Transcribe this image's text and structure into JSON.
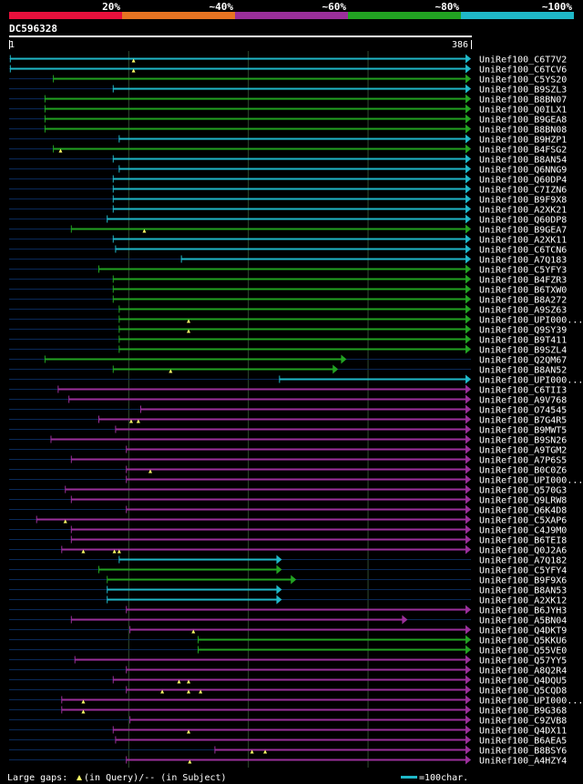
{
  "colors": {
    "bg": "#000000",
    "query_line": "#0a2a5a",
    "gap": "#ffff66",
    "grid": "#2f4a2f"
  },
  "legend": {
    "bins": [
      {
        "label": "20%",
        "color": "#e8103c"
      },
      {
        "label": "~40%",
        "color": "#e87422"
      },
      {
        "label": "~60%",
        "color": "#9b2f9b"
      },
      {
        "label": "~80%",
        "color": "#22a322"
      },
      {
        "label": "~100%",
        "color": "#1fb8c8"
      }
    ]
  },
  "query": {
    "id": "DC596328",
    "start": "1",
    "end": "386"
  },
  "footer": {
    "gaps_text": "Large gaps:",
    "gaps_query": "(in Query)/-- (in Subject)",
    "scale_text": "=100char."
  },
  "chart_data": {
    "type": "alignment",
    "title": "DC596328",
    "query_length": 386,
    "grid_positions": [
      100,
      200,
      300
    ],
    "hits": [
      {
        "id": "UniRef100_C6T7V2",
        "start": 1,
        "end": 386,
        "color": "cyan",
        "gaps": [
          104
        ]
      },
      {
        "id": "UniRef100_C6TCV6",
        "start": 1,
        "end": 386,
        "color": "cyan",
        "gaps": [
          104
        ]
      },
      {
        "id": "UniRef100_C5YS20",
        "start": 37,
        "end": 386,
        "color": "green",
        "gaps": []
      },
      {
        "id": "UniRef100_B9SZL3",
        "start": 87,
        "end": 386,
        "color": "cyan",
        "gaps": []
      },
      {
        "id": "UniRef100_B8BN07",
        "start": 30,
        "end": 386,
        "color": "green",
        "gaps": []
      },
      {
        "id": "UniRef100_Q0ILX1",
        "start": 30,
        "end": 386,
        "color": "green",
        "gaps": []
      },
      {
        "id": "UniRef100_B9GEA8",
        "start": 30,
        "end": 386,
        "color": "green",
        "gaps": []
      },
      {
        "id": "UniRef100_B8BN08",
        "start": 30,
        "end": 386,
        "color": "green",
        "gaps": []
      },
      {
        "id": "UniRef100_B9HZP1",
        "start": 92,
        "end": 386,
        "color": "cyan",
        "gaps": []
      },
      {
        "id": "UniRef100_B4FSG2",
        "start": 37,
        "end": 386,
        "color": "green",
        "gaps": [
          43
        ]
      },
      {
        "id": "UniRef100_B8AN54",
        "start": 87,
        "end": 386,
        "color": "cyan",
        "gaps": []
      },
      {
        "id": "UniRef100_Q6NNG9",
        "start": 92,
        "end": 386,
        "color": "cyan",
        "gaps": []
      },
      {
        "id": "UniRef100_Q60DP4",
        "start": 87,
        "end": 386,
        "color": "cyan",
        "gaps": []
      },
      {
        "id": "UniRef100_C7IZN6",
        "start": 87,
        "end": 386,
        "color": "cyan",
        "gaps": []
      },
      {
        "id": "UniRef100_B9F9X8",
        "start": 87,
        "end": 386,
        "color": "cyan",
        "gaps": []
      },
      {
        "id": "UniRef100_A2XK21",
        "start": 87,
        "end": 386,
        "color": "cyan",
        "gaps": []
      },
      {
        "id": "UniRef100_Q60DP8",
        "start": 82,
        "end": 386,
        "color": "cyan",
        "gaps": []
      },
      {
        "id": "UniRef100_B9GEA7",
        "start": 52,
        "end": 386,
        "color": "green",
        "gaps": [
          113
        ]
      },
      {
        "id": "UniRef100_A2XK11",
        "start": 87,
        "end": 386,
        "color": "cyan",
        "gaps": []
      },
      {
        "id": "UniRef100_C6TCN6",
        "start": 89,
        "end": 386,
        "color": "cyan",
        "gaps": []
      },
      {
        "id": "UniRef100_A7Q183",
        "start": 144,
        "end": 386,
        "color": "cyan",
        "gaps": []
      },
      {
        "id": "UniRef100_C5YFY3",
        "start": 75,
        "end": 386,
        "color": "green",
        "gaps": []
      },
      {
        "id": "UniRef100_B4FZR3",
        "start": 87,
        "end": 386,
        "color": "green",
        "gaps": []
      },
      {
        "id": "UniRef100_B6TXW0",
        "start": 87,
        "end": 386,
        "color": "green",
        "gaps": []
      },
      {
        "id": "UniRef100_B8A272",
        "start": 87,
        "end": 386,
        "color": "green",
        "gaps": []
      },
      {
        "id": "UniRef100_A9SZ63",
        "start": 92,
        "end": 386,
        "color": "green",
        "gaps": []
      },
      {
        "id": "UniRef100_UPI000...",
        "start": 92,
        "end": 386,
        "color": "green",
        "gaps": [
          150
        ]
      },
      {
        "id": "UniRef100_Q9SY39",
        "start": 92,
        "end": 386,
        "color": "green",
        "gaps": [
          150
        ]
      },
      {
        "id": "UniRef100_B9T411",
        "start": 92,
        "end": 386,
        "color": "green",
        "gaps": []
      },
      {
        "id": "UniRef100_B9SZL4",
        "start": 92,
        "end": 386,
        "color": "green",
        "gaps": []
      },
      {
        "id": "UniRef100_Q2QM67",
        "start": 30,
        "end": 282,
        "color": "green",
        "gaps": []
      },
      {
        "id": "UniRef100_B8AN52",
        "start": 87,
        "end": 275,
        "color": "green",
        "gaps": [
          135
        ]
      },
      {
        "id": "UniRef100_UPI000...",
        "start": 226,
        "end": 386,
        "color": "cyan",
        "gaps": []
      },
      {
        "id": "UniRef100_C6TII3",
        "start": 41,
        "end": 386,
        "color": "magenta",
        "gaps": []
      },
      {
        "id": "UniRef100_A9V768",
        "start": 50,
        "end": 386,
        "color": "magenta",
        "gaps": []
      },
      {
        "id": "UniRef100_O74545",
        "start": 110,
        "end": 386,
        "color": "magenta",
        "gaps": []
      },
      {
        "id": "UniRef100_B7G4R5",
        "start": 75,
        "end": 386,
        "color": "magenta",
        "gaps": [
          102,
          108
        ]
      },
      {
        "id": "UniRef100_B9MWT5",
        "start": 89,
        "end": 386,
        "color": "magenta",
        "gaps": []
      },
      {
        "id": "UniRef100_B9SN26",
        "start": 35,
        "end": 386,
        "color": "magenta",
        "gaps": []
      },
      {
        "id": "UniRef100_A9TGM2",
        "start": 98,
        "end": 386,
        "color": "magenta",
        "gaps": []
      },
      {
        "id": "UniRef100_A7P6S5",
        "start": 52,
        "end": 386,
        "color": "magenta",
        "gaps": []
      },
      {
        "id": "UniRef100_B0C0Z6",
        "start": 98,
        "end": 386,
        "color": "magenta",
        "gaps": [
          118
        ]
      },
      {
        "id": "UniRef100_UPI000...",
        "start": 98,
        "end": 386,
        "color": "magenta",
        "gaps": []
      },
      {
        "id": "UniRef100_Q570G3",
        "start": 47,
        "end": 386,
        "color": "magenta",
        "gaps": []
      },
      {
        "id": "UniRef100_Q9LRW8",
        "start": 52,
        "end": 386,
        "color": "magenta",
        "gaps": []
      },
      {
        "id": "UniRef100_Q6K4D8",
        "start": 98,
        "end": 386,
        "color": "magenta",
        "gaps": []
      },
      {
        "id": "UniRef100_C5XAP6",
        "start": 23,
        "end": 386,
        "color": "magenta",
        "gaps": [
          47
        ]
      },
      {
        "id": "UniRef100_C4J9M0",
        "start": 52,
        "end": 386,
        "color": "magenta",
        "gaps": []
      },
      {
        "id": "UniRef100_B6TEI8",
        "start": 52,
        "end": 386,
        "color": "magenta",
        "gaps": []
      },
      {
        "id": "UniRef100_Q0J2A6",
        "start": 44,
        "end": 386,
        "color": "magenta",
        "gaps": [
          62,
          88,
          92
        ]
      },
      {
        "id": "UniRef100_A7Q182",
        "start": 92,
        "end": 228,
        "color": "cyan",
        "gaps": []
      },
      {
        "id": "UniRef100_C5YFY4",
        "start": 75,
        "end": 228,
        "color": "green",
        "gaps": []
      },
      {
        "id": "UniRef100_B9F9X6",
        "start": 82,
        "end": 240,
        "color": "green",
        "gaps": []
      },
      {
        "id": "UniRef100_B8AN53",
        "start": 82,
        "end": 228,
        "color": "cyan",
        "gaps": []
      },
      {
        "id": "UniRef100_A2XK12",
        "start": 82,
        "end": 228,
        "color": "cyan",
        "gaps": []
      },
      {
        "id": "UniRef100_B6JYH3",
        "start": 98,
        "end": 386,
        "color": "magenta",
        "gaps": []
      },
      {
        "id": "UniRef100_A5BN04",
        "start": 52,
        "end": 333,
        "color": "magenta",
        "gaps": []
      },
      {
        "id": "UniRef100_Q4DKT9",
        "start": 101,
        "end": 386,
        "color": "magenta",
        "gaps": [
          154
        ]
      },
      {
        "id": "UniRef100_Q5KKU6",
        "start": 158,
        "end": 386,
        "color": "green",
        "gaps": []
      },
      {
        "id": "UniRef100_Q55VE0",
        "start": 158,
        "end": 386,
        "color": "green",
        "gaps": []
      },
      {
        "id": "UniRef100_Q57YY5",
        "start": 55,
        "end": 386,
        "color": "magenta",
        "gaps": []
      },
      {
        "id": "UniRef100_A8Q2R4",
        "start": 98,
        "end": 386,
        "color": "magenta",
        "gaps": []
      },
      {
        "id": "UniRef100_Q4DQU5",
        "start": 87,
        "end": 386,
        "color": "magenta",
        "gaps": [
          142,
          150
        ]
      },
      {
        "id": "UniRef100_Q5CQD8",
        "start": 98,
        "end": 386,
        "color": "magenta",
        "gaps": [
          128,
          150,
          160
        ]
      },
      {
        "id": "UniRef100_UPI000...",
        "start": 44,
        "end": 386,
        "color": "magenta",
        "gaps": [
          62
        ]
      },
      {
        "id": "UniRef100_B9G368",
        "start": 44,
        "end": 386,
        "color": "magenta",
        "gaps": [
          62
        ]
      },
      {
        "id": "UniRef100_C9ZVB8",
        "start": 101,
        "end": 386,
        "color": "magenta",
        "gaps": []
      },
      {
        "id": "UniRef100_Q4DX11",
        "start": 87,
        "end": 386,
        "color": "magenta",
        "gaps": [
          150
        ]
      },
      {
        "id": "UniRef100_B6AEA5",
        "start": 89,
        "end": 386,
        "color": "magenta",
        "gaps": []
      },
      {
        "id": "UniRef100_B8BSY6",
        "start": 172,
        "end": 386,
        "color": "magenta",
        "gaps": [
          203,
          214
        ]
      },
      {
        "id": "UniRef100_A4HZY4",
        "start": 98,
        "end": 386,
        "color": "magenta",
        "gaps": [
          151
        ]
      }
    ]
  }
}
